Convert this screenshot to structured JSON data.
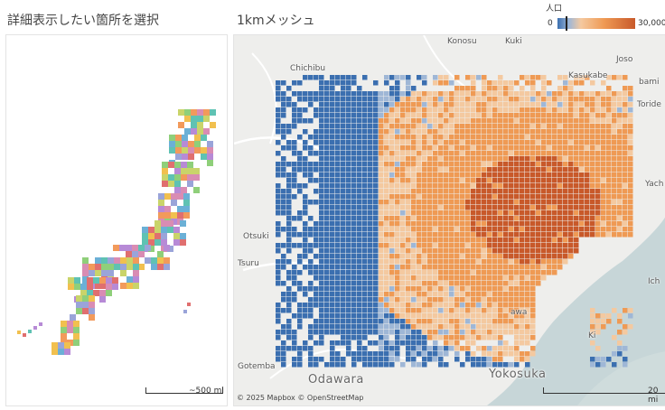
{
  "left_panel": {
    "title": "詳細表示したい箇所を選択",
    "scale_label": "~500 mi"
  },
  "right_panel": {
    "title": "1kmメッシュ",
    "scale_label": "20 mi",
    "attribution": "© 2025 Mapbox © OpenStreetMap"
  },
  "legend": {
    "title": "人口",
    "min": "0",
    "max": "30,000",
    "colors": [
      "#3b6fb0",
      "#9fb7d6",
      "#f4c9a0",
      "#ef9a54",
      "#c8592a"
    ]
  },
  "places": {
    "konosu": "Konosu",
    "kuki": "Kuki",
    "joso": "Joso",
    "kasukabe": "Kasukabe",
    "tsukubamirai": "bami",
    "toride": "Toride",
    "chichibu": "Chichibu",
    "otsuki": "Otsuki",
    "tsuru": "Tsuru",
    "gotemba": "Gotemba",
    "odawara": "Odawara",
    "yokosuka": "Yokosuka",
    "yachiyo": "Yach",
    "ichihara": "Ich",
    "kawasaki": "awa",
    "kisarazu": "Ki"
  }
}
